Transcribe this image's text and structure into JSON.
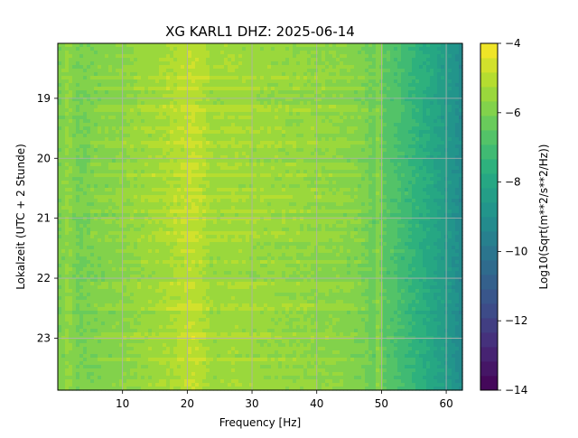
{
  "chart_data": {
    "type": "heatmap",
    "title": "XG KARL1  DHZ: 2025-06-14",
    "xlabel": "Frequency [Hz]",
    "ylabel": "Lokalzeit (UTC + 2 Stunde)",
    "xlim": [
      0.0,
      62.5
    ],
    "ylim": [
      18.083,
      23.867
    ],
    "y_inverted": true,
    "x_ticks": [
      10,
      20,
      30,
      40,
      50,
      60
    ],
    "x_tick_labels": [
      "10",
      "20",
      "30",
      "40",
      "50",
      "60"
    ],
    "y_ticks": [
      19,
      20,
      21,
      22,
      23
    ],
    "y_tick_labels": [
      "19",
      "20",
      "21",
      "22",
      "23"
    ],
    "grid": true,
    "colormap": "viridis",
    "colorbar": {
      "label": "Log10(Sqrt(m**2/s**2/Hz))",
      "range": [
        -14,
        -4
      ],
      "ticks": [
        -4,
        -6,
        -8,
        -10,
        -12,
        -14
      ],
      "tick_labels": [
        "−4",
        "−6",
        "−8",
        "−10",
        "−12",
        "−14"
      ],
      "levels": 24
    },
    "spectrum_profile": {
      "frequency_hz": [
        0.5,
        1.5,
        3,
        5,
        8,
        11,
        14,
        17,
        19,
        20.5,
        22,
        24,
        27,
        30,
        35,
        40,
        44,
        47,
        49,
        50,
        52,
        55,
        58,
        60,
        62.5
      ],
      "log10_amplitude": [
        -6.0,
        -5.6,
        -6.1,
        -6.0,
        -5.9,
        -5.7,
        -5.5,
        -5.3,
        -5.1,
        -4.9,
        -5.1,
        -5.5,
        -5.4,
        -5.5,
        -5.6,
        -5.7,
        -5.8,
        -6.0,
        -6.3,
        -6.5,
        -6.8,
        -7.4,
        -8.0,
        -8.5,
        -9.3
      ]
    },
    "bright_time_bands_hour": [
      18.48,
      18.65,
      18.84,
      19.18,
      19.33,
      19.52,
      19.77,
      19.97,
      20.13,
      20.27,
      20.53,
      20.68,
      20.88,
      21.05,
      21.27,
      21.35,
      21.72,
      22.12,
      22.48,
      22.95,
      23.35
    ],
    "line_artifact_hz": 49.5
  }
}
